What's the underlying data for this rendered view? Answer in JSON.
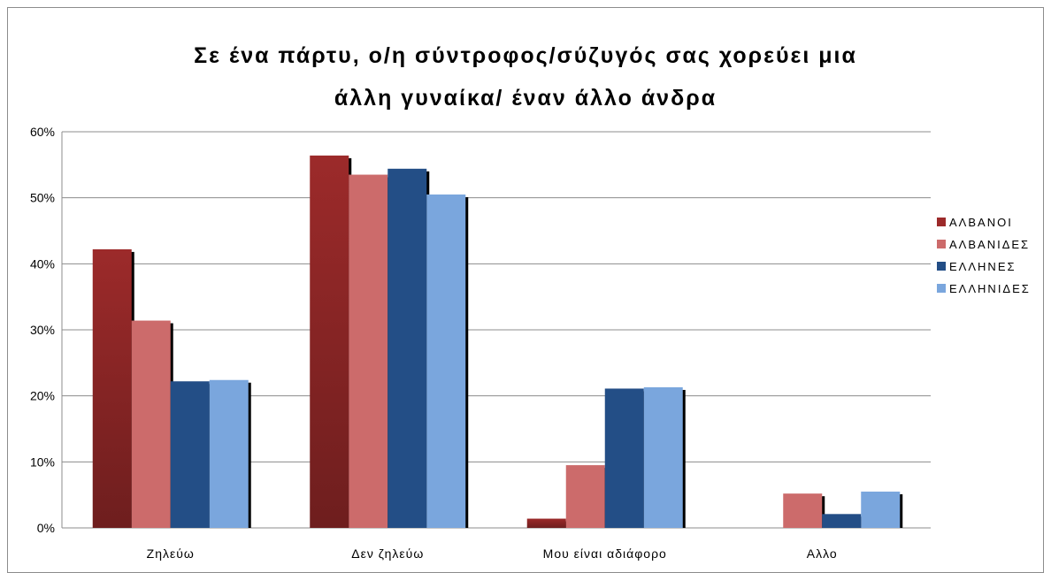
{
  "chart_data": {
    "type": "bar",
    "title_lines": [
      "Σε ένα πάρτυ, ο/η σύντροφος/σύζυγός σας χορεύει μια",
      "άλλη γυναίκα/ έναν άλλο άνδρα"
    ],
    "categories": [
      "Ζηλεύω",
      "Δεν ζηλεύω",
      "Μου είναι αδιάφορο",
      "Αλλο"
    ],
    "series": [
      {
        "name": "ΑΛΒΑΝΟΙ",
        "color": "#9c2a2a",
        "values": [
          42.2,
          56.4,
          1.4,
          0
        ]
      },
      {
        "name": "ΑΛΒΑΝΙΔΕΣ",
        "color": "#cc6b6b",
        "values": [
          31.4,
          53.5,
          9.5,
          5.2
        ]
      },
      {
        "name": "ΕΛΛΗΝΕΣ",
        "color": "#234e86",
        "values": [
          22.2,
          54.4,
          21.1,
          2.1
        ]
      },
      {
        "name": "ΕΛΛΗΝΙΔΕΣ",
        "color": "#7aa6dd",
        "values": [
          22.4,
          50.5,
          21.3,
          5.5
        ]
      }
    ],
    "ylim": [
      0,
      60
    ],
    "yticks": [
      "0%",
      "10%",
      "20%",
      "30%",
      "40%",
      "50%",
      "60%"
    ],
    "grid": true,
    "legend_position": "right"
  }
}
